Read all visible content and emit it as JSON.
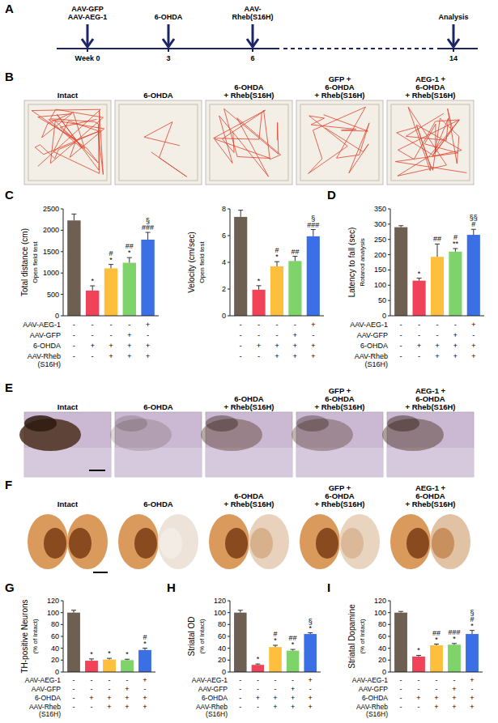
{
  "panel_letters": [
    "A",
    "B",
    "C",
    "D",
    "E",
    "F",
    "G",
    "H",
    "I"
  ],
  "timeline": {
    "events": [
      {
        "labels": [
          "AAV-GFP",
          "AAV-AEG-1"
        ],
        "week": "Week 0"
      },
      {
        "labels": [
          "6-OHDA"
        ],
        "week": "3"
      },
      {
        "labels": [
          "AAV-",
          "Rheb(S16H)"
        ],
        "week": "6"
      },
      {
        "labels": [
          "Analysis"
        ],
        "week": "14"
      }
    ]
  },
  "image_panels": [
    {
      "titles": [
        [
          "Intact"
        ],
        [
          "6-OHDA"
        ],
        [
          "6-OHDA",
          "+ Rheb(S16H)"
        ],
        [
          "GFP +",
          "6-OHDA",
          "+ Rheb(S16H)"
        ],
        [
          "AEG-1 +",
          "6-OHDA",
          "+ Rheb(S16H)"
        ]
      ]
    },
    {
      "titles": [
        [
          "Intact"
        ],
        [
          "6-OHDA"
        ],
        [
          "6-OHDA",
          "+ Rheb(S16H)"
        ],
        [
          "GFP +",
          "6-OHDA",
          "+ Rheb(S16H)"
        ],
        [
          "AEG-1 +",
          "6-OHDA",
          "+ Rheb(S16H)"
        ]
      ]
    },
    {
      "titles": [
        [
          "Intact"
        ],
        [
          "6-OHDA"
        ],
        [
          "6-OHDA",
          "+ Rheb(S16H)"
        ],
        [
          "GFP +",
          "6-OHDA",
          "+ Rheb(S16H)"
        ],
        [
          "AEG-1 +",
          "6-OHDA",
          "+ Rheb(S16H)"
        ]
      ]
    }
  ],
  "chart_data": [
    {
      "type": "bar",
      "ylabel": "Total distance (cm)",
      "ylabel_note": "Open field test",
      "categories": [
        null,
        null,
        null,
        null,
        null
      ],
      "values": [
        2230,
        590,
        1110,
        1240,
        1780
      ],
      "errors": [
        150,
        110,
        90,
        120,
        170
      ],
      "annotations": [
        [],
        [
          "*"
        ],
        [
          "#",
          "*"
        ],
        [
          "##",
          "*"
        ],
        [
          "§",
          "###"
        ]
      ],
      "colors": [
        "#6d5f52",
        "#f0435a",
        "#fdbf3c",
        "#7ed46a",
        "#3a6fe6"
      ],
      "ylim": [
        0,
        2500
      ],
      "yticks": [
        0,
        500,
        1000,
        1500,
        2000,
        2500
      ],
      "tick_labels": "y",
      "conditions": [
        {
          "label": [
            "AAV-AEG-1"
          ],
          "marks": [
            "-",
            "-",
            "-",
            "-",
            "+"
          ]
        },
        {
          "label": [
            "AAV-GFP"
          ],
          "marks": [
            "-",
            "-",
            "-",
            "+",
            "-"
          ]
        },
        {
          "label": [
            "6-OHDA"
          ],
          "marks": [
            "-",
            "+",
            "+",
            "+",
            "+"
          ]
        },
        {
          "label": [
            "AAV-Rheb",
            "(S16H)"
          ],
          "marks": [
            "-",
            "-",
            "+",
            "+",
            "+"
          ]
        }
      ]
    },
    {
      "type": "bar",
      "ylabel": "Velocity (cm/sec)",
      "ylabel_note": "Open field test",
      "categories": [
        null,
        null,
        null,
        null,
        null
      ],
      "values": [
        7.4,
        1.95,
        3.7,
        4.1,
        5.95
      ],
      "errors": [
        0.5,
        0.3,
        0.35,
        0.35,
        0.5
      ],
      "annotations": [
        [],
        [
          "*"
        ],
        [
          "#",
          "*"
        ],
        [
          "##"
        ],
        [
          "§",
          "###"
        ]
      ],
      "colors": [
        "#6d5f52",
        "#f0435a",
        "#fdbf3c",
        "#7ed46a",
        "#3a6fe6"
      ],
      "ylim": [
        0,
        8
      ],
      "yticks": [
        0,
        2,
        4,
        6,
        8
      ],
      "tick_labels": "y",
      "conditions": [
        {
          "marks": [
            "-",
            "-",
            "-",
            "-",
            "+"
          ]
        },
        {
          "marks": [
            "-",
            "-",
            "-",
            "+",
            "-"
          ]
        },
        {
          "marks": [
            "-",
            "+",
            "+",
            "+",
            "+"
          ]
        },
        {
          "marks": [
            "-",
            "-",
            "+",
            "+",
            "+"
          ]
        }
      ]
    },
    {
      "type": "bar",
      "ylabel": "Latency to fall (sec)",
      "ylabel_note": "Rotarod analysis",
      "categories": [
        null,
        null,
        null,
        null,
        null
      ],
      "values": [
        290,
        115,
        193,
        210,
        265
      ],
      "errors": [
        5,
        8,
        42,
        10,
        18
      ],
      "annotations": [
        [],
        [
          "*"
        ],
        [
          "##"
        ],
        [
          "#",
          "**"
        ],
        [
          "§§",
          "#"
        ]
      ],
      "colors": [
        "#6d5f52",
        "#f0435a",
        "#fdbf3c",
        "#7ed46a",
        "#3a6fe6"
      ],
      "ylim": [
        0,
        350
      ],
      "yticks": [
        0,
        50,
        100,
        150,
        200,
        250,
        300,
        350
      ],
      "tick_labels": "y",
      "conditions": [
        {
          "label": [
            "AAV-AEG-1"
          ],
          "marks": [
            "-",
            "-",
            "-",
            "-",
            "+"
          ]
        },
        {
          "label": [
            "AAV-GFP"
          ],
          "marks": [
            "-",
            "-",
            "-",
            "+",
            "-"
          ]
        },
        {
          "label": [
            "6-OHDA"
          ],
          "marks": [
            "-",
            "+",
            "+",
            "+",
            "+"
          ]
        },
        {
          "label": [
            "AAV-Rheb",
            "(S16H)"
          ],
          "marks": [
            "-",
            "-",
            "+",
            "+",
            "+"
          ]
        }
      ]
    },
    {
      "type": "bar",
      "ylabel": "TH-positive Neurons",
      "ylabel_note": "(% of Intact)",
      "categories": [
        null,
        null,
        null,
        null,
        null
      ],
      "values": [
        100,
        19,
        21,
        20,
        37
      ],
      "errors": [
        4,
        3,
        2,
        1.5,
        3
      ],
      "annotations": [
        [],
        [
          "*"
        ],
        [
          "*"
        ],
        [
          "*"
        ],
        [
          "#",
          "*"
        ]
      ],
      "colors": [
        "#6d5f52",
        "#f0435a",
        "#fdbf3c",
        "#7ed46a",
        "#3a6fe6"
      ],
      "ylim": [
        0,
        120
      ],
      "yticks": [
        0,
        20,
        40,
        60,
        80,
        100,
        120
      ],
      "tick_labels": "y",
      "conditions": [
        {
          "label": [
            "AAV-AEG-1"
          ],
          "marks": [
            "-",
            "-",
            "-",
            "-",
            "+"
          ]
        },
        {
          "label": [
            "AAV-GFP"
          ],
          "marks": [
            "-",
            "-",
            "-",
            "+",
            "-"
          ]
        },
        {
          "label": [
            "6-OHDA"
          ],
          "marks": [
            "-",
            "+",
            "+",
            "+",
            "+"
          ]
        },
        {
          "label": [
            "AAV-Rheb",
            "(S16H)"
          ],
          "marks": [
            "-",
            "-",
            "+",
            "+",
            "+"
          ]
        }
      ]
    },
    {
      "type": "bar",
      "ylabel": "Striatal OD",
      "ylabel_note": "(% of Intact)",
      "categories": [
        null,
        null,
        null,
        null,
        null
      ],
      "values": [
        100,
        12,
        42,
        36,
        64
      ],
      "errors": [
        4,
        1.5,
        3,
        2,
        2
      ],
      "annotations": [
        [],
        [
          "*"
        ],
        [
          "#",
          "*"
        ],
        [
          "##",
          "*"
        ],
        [
          "§",
          "*"
        ]
      ],
      "colors": [
        "#6d5f52",
        "#f0435a",
        "#fdbf3c",
        "#7ed46a",
        "#3a6fe6"
      ],
      "ylim": [
        0,
        120
      ],
      "yticks": [
        0,
        20,
        40,
        60,
        80,
        100,
        120
      ],
      "tick_labels": "y",
      "conditions": [
        {
          "label": [
            "AAV-AEG-1"
          ],
          "marks": [
            "-",
            "-",
            "-",
            "-",
            "+"
          ]
        },
        {
          "label": [
            "AAV-GFP"
          ],
          "marks": [
            "-",
            "-",
            "-",
            "+",
            "-"
          ]
        },
        {
          "label": [
            "6-OHDA"
          ],
          "marks": [
            "-",
            "+",
            "+",
            "+",
            "+"
          ]
        },
        {
          "label": [
            "AAV-Rheb",
            "(S16H)"
          ],
          "marks": [
            "-",
            "-",
            "+",
            "+",
            "+"
          ]
        }
      ]
    },
    {
      "type": "bar",
      "ylabel": "Striatal Dopamine",
      "ylabel_note": "(% of Intact)",
      "categories": [
        null,
        null,
        null,
        null,
        null
      ],
      "values": [
        100,
        26,
        45,
        46,
        64
      ],
      "errors": [
        2,
        2,
        2,
        2,
        6
      ],
      "annotations": [
        [],
        [
          "*"
        ],
        [
          "##",
          "*"
        ],
        [
          "###",
          "*"
        ],
        [
          "§",
          "#",
          "*"
        ]
      ],
      "colors": [
        "#6d5f52",
        "#f0435a",
        "#fdbf3c",
        "#7ed46a",
        "#3a6fe6"
      ],
      "ylim": [
        0,
        120
      ],
      "yticks": [
        0,
        20,
        40,
        60,
        80,
        100,
        120
      ],
      "tick_labels": "y",
      "conditions": [
        {
          "label": [
            "AAV-AEG-1"
          ],
          "marks": [
            "-",
            "-",
            "-",
            "-",
            "+"
          ]
        },
        {
          "label": [
            "AAV-GFP"
          ],
          "marks": [
            "-",
            "-",
            "-",
            "+",
            "-"
          ]
        },
        {
          "label": [
            "6-OHDA"
          ],
          "marks": [
            "-",
            "+",
            "+",
            "+",
            "+"
          ]
        },
        {
          "label": [
            "AAV-Rheb",
            "(S16H)"
          ],
          "marks": [
            "-",
            "-",
            "+",
            "+",
            "+"
          ]
        }
      ]
    }
  ]
}
